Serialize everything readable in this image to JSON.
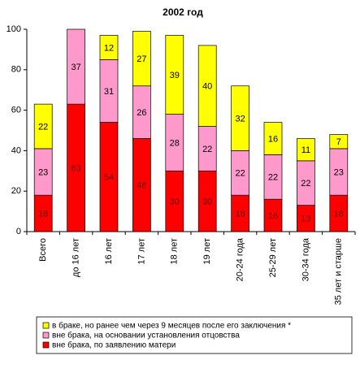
{
  "chart_data": {
    "type": "stacked-bar",
    "title": "2002 год",
    "categories": [
      "Всего",
      "до 16 лет",
      "16 лет",
      "17 лет",
      "18 лет",
      "19 лет",
      "20-24 года",
      "25-29 лет",
      "30-34 года",
      "35 лет и старше"
    ],
    "series": [
      {
        "name": "вне брака, по заявлению матери",
        "color": "#ff0000",
        "values": [
          18,
          63,
          54,
          46,
          30,
          30,
          18,
          16,
          13,
          18
        ]
      },
      {
        "name": "вне брака, на основании установления отцовства",
        "color": "#ff99cc",
        "values": [
          23,
          37,
          31,
          26,
          28,
          22,
          22,
          22,
          22,
          23
        ]
      },
      {
        "name": "в браке, но ранее чем через 9 месяцев после его заключения *",
        "color": "#ffff00",
        "values": [
          22,
          null,
          12,
          27,
          39,
          40,
          32,
          16,
          11,
          7
        ]
      }
    ],
    "ylim": [
      0,
      100
    ],
    "yticks": [
      0,
      20,
      40,
      60,
      80,
      100
    ],
    "grid": false
  }
}
